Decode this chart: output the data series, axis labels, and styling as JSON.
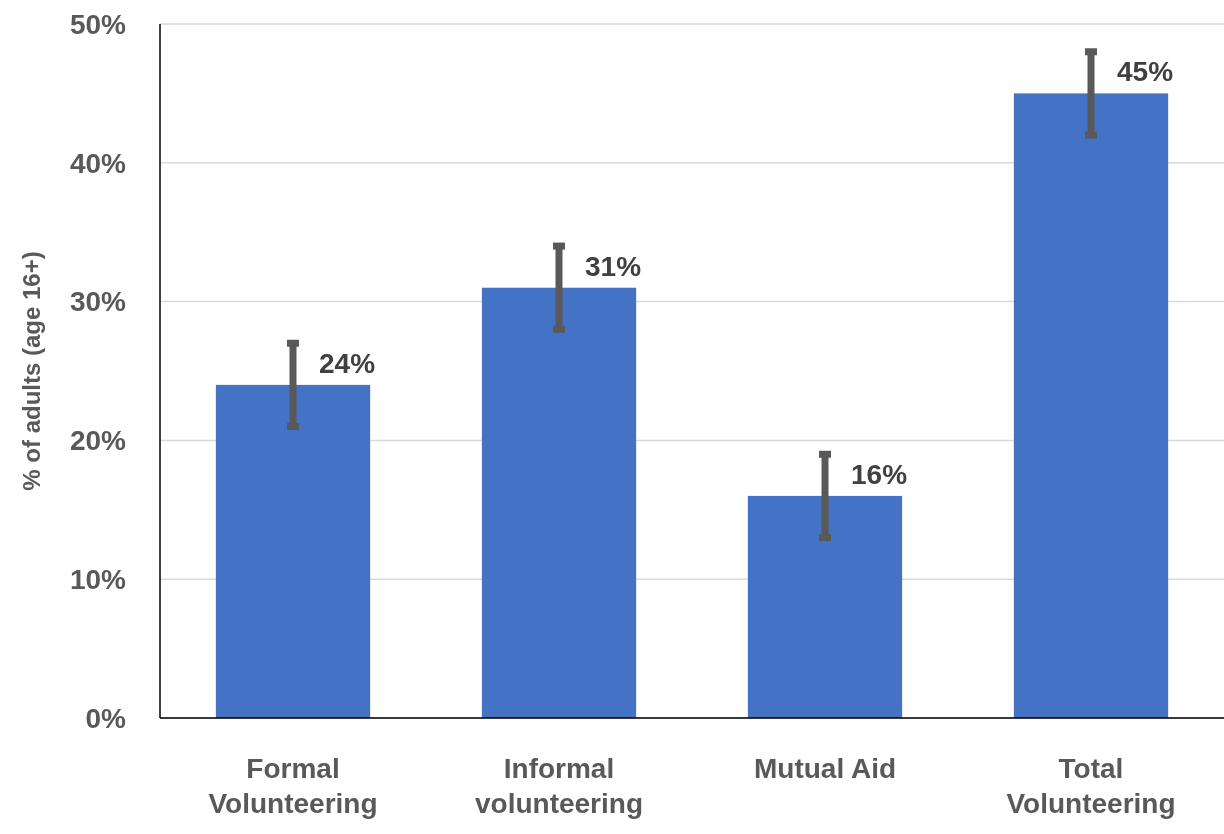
{
  "chart_data": {
    "type": "bar",
    "ylabel": "% of adults (age 16+)",
    "categories": [
      "Formal Volunteering",
      "Informal volunteering",
      "Mutual Aid",
      "Total Volunteering"
    ],
    "values": [
      24,
      31,
      16,
      45
    ],
    "errors": [
      3,
      3,
      3,
      3
    ],
    "value_labels": [
      "24%",
      "31%",
      "16%",
      "45%"
    ],
    "color": "#4472c4",
    "ylim": [
      0,
      50
    ],
    "yticks": [
      {
        "value": 0,
        "label": "0%"
      },
      {
        "value": 10,
        "label": "10%"
      },
      {
        "value": 20,
        "label": "20%"
      },
      {
        "value": 30,
        "label": "30%"
      },
      {
        "value": 40,
        "label": "40%"
      },
      {
        "value": 50,
        "label": "50%"
      }
    ],
    "grid": "y"
  }
}
